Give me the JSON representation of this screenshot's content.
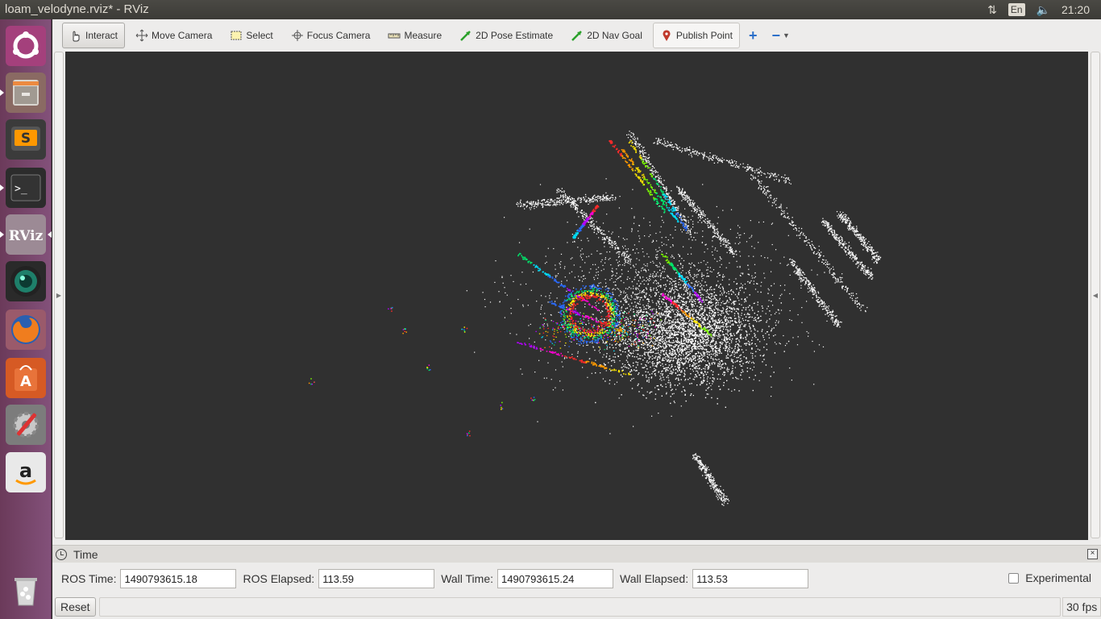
{
  "window": {
    "title": "loam_velodyne.rviz* - RViz"
  },
  "tray": {
    "keyboard_layout": "En",
    "clock": "21:20"
  },
  "launcher": {
    "items": [
      {
        "name": "ubuntu-dash",
        "icon": "ubuntu-logo-icon"
      },
      {
        "name": "files",
        "icon": "file-cabinet-icon"
      },
      {
        "name": "sublime-text",
        "icon": "sublime-text-icon",
        "glyph": "S"
      },
      {
        "name": "terminal",
        "icon": "terminal-icon",
        "glyph": ">_"
      },
      {
        "name": "rviz",
        "icon": "rviz-icon",
        "glyph": "RViz"
      },
      {
        "name": "camera-app",
        "icon": "camera-lens-icon"
      },
      {
        "name": "firefox",
        "icon": "firefox-icon"
      },
      {
        "name": "software-center",
        "icon": "software-center-icon",
        "glyph": "A"
      },
      {
        "name": "system-settings",
        "icon": "settings-wrench-icon"
      },
      {
        "name": "amazon",
        "icon": "amazon-icon",
        "glyph": "a"
      },
      {
        "name": "trash",
        "icon": "trash-icon"
      }
    ]
  },
  "toolbar": {
    "interact": "Interact",
    "move_camera": "Move Camera",
    "select": "Select",
    "focus_camera": "Focus Camera",
    "measure": "Measure",
    "pose_estimate": "2D Pose Estimate",
    "nav_goal": "2D Nav Goal",
    "publish_point": "Publish Point",
    "add_tool_glyph": "+",
    "remove_tool_glyph": "−"
  },
  "time_panel": {
    "title": "Time",
    "ros_time_label": "ROS Time:",
    "ros_time": "1490793615.18",
    "ros_elapsed_label": "ROS Elapsed:",
    "ros_elapsed": "113.59",
    "wall_time_label": "Wall Time:",
    "wall_time": "1490793615.24",
    "wall_elapsed_label": "Wall Elapsed:",
    "wall_elapsed": "113.53",
    "experimental_label": "Experimental",
    "experimental_checked": false
  },
  "status": {
    "reset": "Reset",
    "fps": "30 fps"
  },
  "colors": {
    "viewport_bg": "#303030",
    "launcher": "#77476b",
    "topbar": "#3c3b37",
    "point_cloud": "#ffffff"
  }
}
